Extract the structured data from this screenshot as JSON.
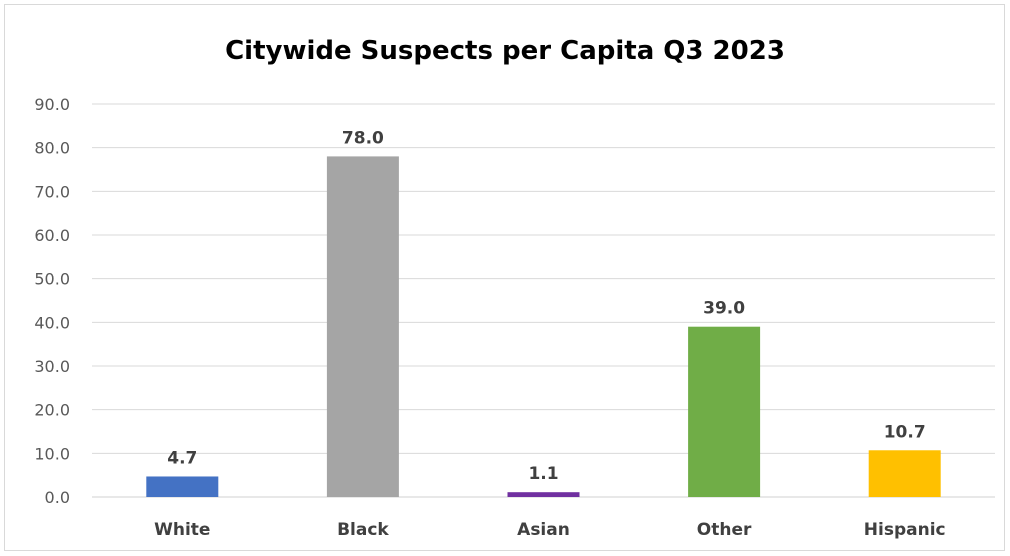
{
  "chart_data": {
    "type": "bar",
    "title": "Citywide Suspects per Capita Q3 2023",
    "xlabel": "",
    "ylabel": "",
    "categories": [
      "White",
      "Black",
      "Asian",
      "Other",
      "Hispanic"
    ],
    "values": [
      4.7,
      78.0,
      1.1,
      39.0,
      10.7
    ],
    "data_labels": [
      "4.7",
      "78.0",
      "1.1",
      "39.0",
      "10.7"
    ],
    "colors": [
      "#4472C4",
      "#A5A5A5",
      "#7030A0",
      "#70AD47",
      "#FFC000"
    ],
    "ylim": [
      0,
      90
    ],
    "y_ticks": [
      0,
      10,
      20,
      30,
      40,
      50,
      60,
      70,
      80,
      90
    ],
    "y_tick_labels": [
      "0.0",
      "10.0",
      "20.0",
      "30.0",
      "40.0",
      "50.0",
      "60.0",
      "70.0",
      "80.0",
      "90.0"
    ],
    "grid": true,
    "legend": "none"
  }
}
